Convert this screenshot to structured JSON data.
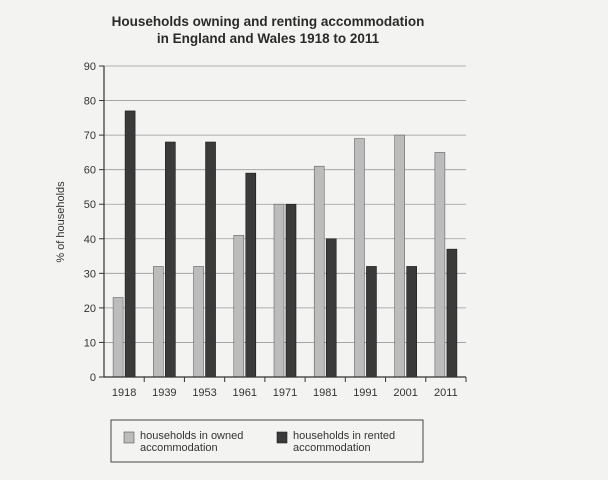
{
  "chart_data": {
    "type": "bar",
    "title_lines": [
      "Households owning and renting accommodation",
      "in England and Wales 1918 to 2011"
    ],
    "xlabel": "",
    "ylabel": "% of households",
    "ylim": [
      0,
      90
    ],
    "yticks": [
      0,
      10,
      20,
      30,
      40,
      50,
      60,
      70,
      80,
      90
    ],
    "grid": true,
    "legend_position": "bottom",
    "categories": [
      "1918",
      "1939",
      "1953",
      "1961",
      "1971",
      "1981",
      "1991",
      "2001",
      "2011"
    ],
    "series": [
      {
        "name_lines": [
          "households in owned",
          "accommodation"
        ],
        "color": "#bcbcbc",
        "values": [
          23,
          32,
          32,
          41,
          50,
          61,
          69,
          70,
          65
        ]
      },
      {
        "name_lines": [
          "households in rented",
          "accommodation"
        ],
        "color": "#3a3a3a",
        "values": [
          77,
          68,
          68,
          59,
          50,
          40,
          32,
          32,
          37
        ]
      }
    ]
  }
}
